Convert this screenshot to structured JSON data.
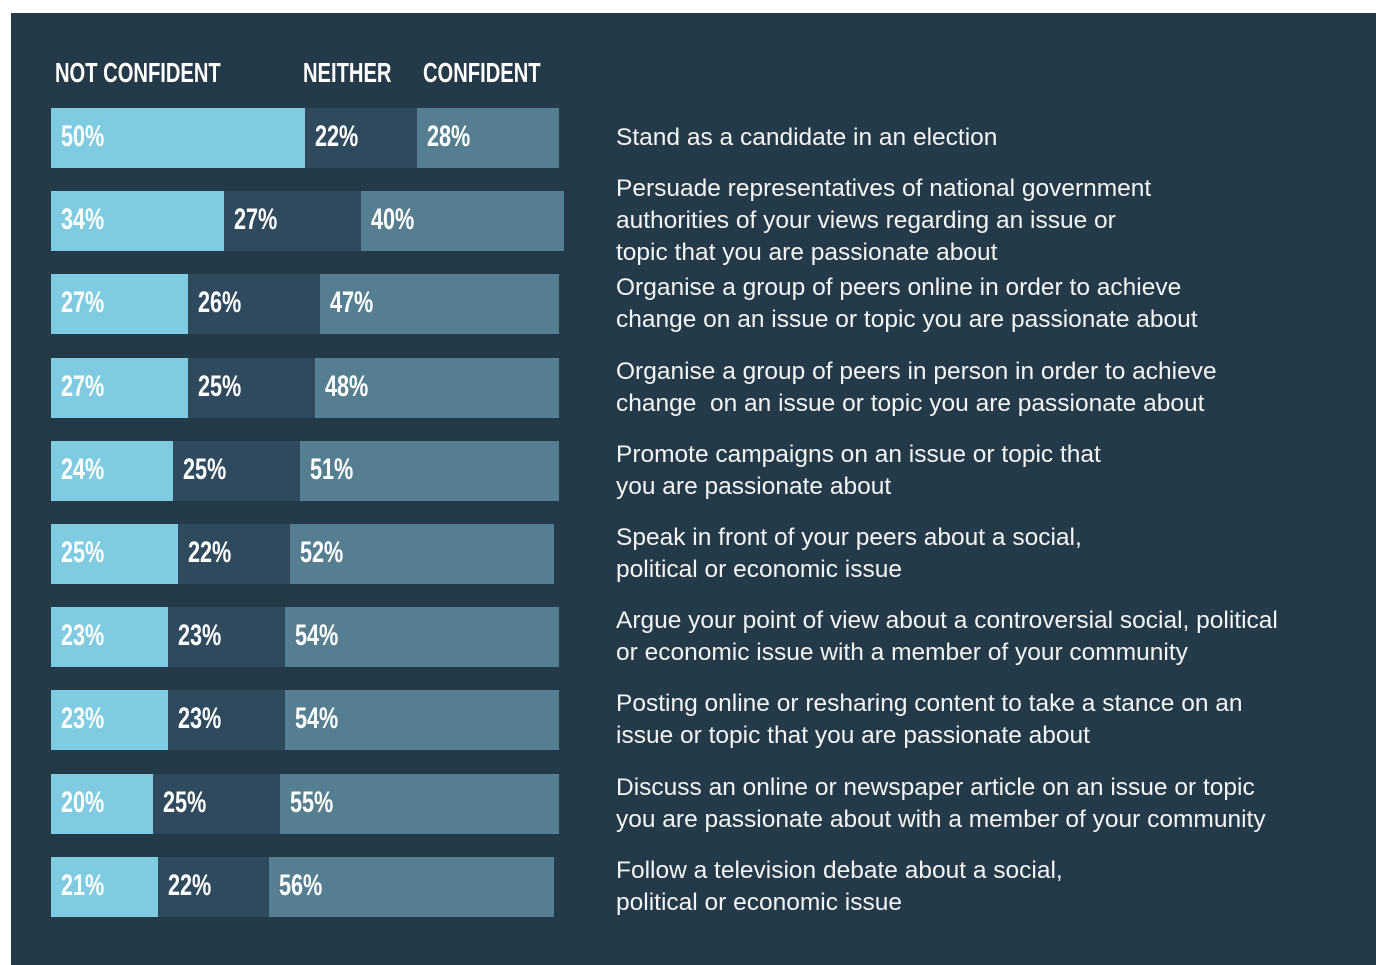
{
  "chart_data": {
    "type": "stacked-bar",
    "categories": [
      "Stand as a candidate in an election",
      "Persuade representatives of national government\nauthorities of your views regarding an issue or\ntopic that you are passionate about",
      "Organise a group of peers online in order to achieve\nchange on an issue or topic you are passionate about",
      "Organise a group of peers in person in order to achieve\nchange  on an issue or topic you are passionate about",
      "Promote campaigns on an issue or topic that\nyou are passionate about",
      "Speak in front of your peers about a social,\npolitical or economic issue",
      "Argue your point of view about a controversial social, political\nor economic issue with a member of your community",
      "Posting online or resharing content to take a stance on an\nissue or topic that you are passionate about",
      "Discuss an online or newspaper article on an issue or topic\nyou are passionate about with a member of your community",
      "Follow a television debate about a social,\npolitical or economic issue"
    ],
    "series": [
      {
        "name": "NOT CONFIDENT",
        "color": "#7ecbe2",
        "values": [
          50,
          34,
          27,
          27,
          24,
          25,
          23,
          23,
          20,
          21
        ],
        "value_labels": [
          "50%",
          "34%",
          "27%",
          "27%",
          "24%",
          "25%",
          "23%",
          "23%",
          "20%",
          "21%"
        ]
      },
      {
        "name": "NEITHER",
        "color": "#2f4a5c",
        "values": [
          22,
          27,
          26,
          25,
          25,
          22,
          23,
          23,
          25,
          22
        ],
        "value_labels": [
          "22%",
          "27%",
          "26%",
          "25%",
          "25%",
          "22%",
          "23%",
          "23%",
          "25%",
          "22%"
        ]
      },
      {
        "name": "CONFIDENT",
        "color": "#557f90",
        "values": [
          28,
          40,
          47,
          48,
          51,
          52,
          54,
          54,
          55,
          56
        ],
        "value_labels": [
          "28%",
          "40%",
          "47%",
          "48%",
          "51%",
          "52%",
          "54%",
          "54%",
          "55%",
          "56%"
        ]
      }
    ]
  }
}
